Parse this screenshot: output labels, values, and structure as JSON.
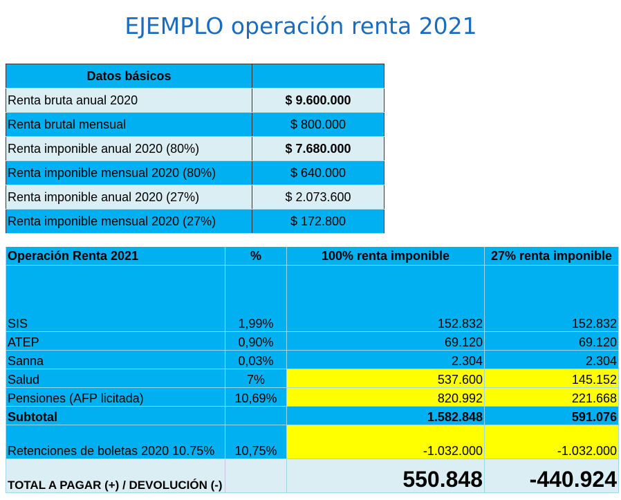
{
  "title": "EJEMPLO operación renta 2021",
  "basic": {
    "header": "Datos básicos",
    "rows": [
      {
        "label": "Renta bruta anual 2020",
        "value": "$ 9.600.000"
      },
      {
        "label": "Renta brutal mensual",
        "value": "$ 800.000"
      },
      {
        "label": "Renta imponible anual 2020 (80%)",
        "value": "$ 7.680.000"
      },
      {
        "label": "Renta imponible mensual 2020 (80%)",
        "value": "$ 640.000"
      },
      {
        "label": "Renta imponible anual  2020 (27%)",
        "value": "$ 2.073.600"
      },
      {
        "label": "Renta imponible mensual 2020 (27%)",
        "value": "$ 172.800"
      }
    ]
  },
  "op": {
    "headers": [
      "Operación Renta 2021",
      "%",
      "100% renta imponible",
      "27% renta imponible"
    ],
    "rows": [
      {
        "label": "SIS",
        "pct": "1,99%",
        "full": "152.832",
        "p27": "152.832"
      },
      {
        "label": "ATEP",
        "pct": "0,90%",
        "full": "69.120",
        "p27": "69.120"
      },
      {
        "label": "Sanna",
        "pct": "0,03%",
        "full": "2.304",
        "p27": "2.304"
      },
      {
        "label": "Salud",
        "pct": "7%",
        "full": "537.600",
        "p27": "145.152"
      },
      {
        "label": "Pensiones (AFP licitada)",
        "pct": "10,69%",
        "full": "820.992",
        "p27": "221.668"
      },
      {
        "label": "Subtotal",
        "pct": "",
        "full": "1.582.848",
        "p27": "591.076"
      },
      {
        "label": "Retenciones de boletas 2020 10.75%",
        "pct": "10,75%",
        "full": "-1.032.000",
        "p27": "-1.032.000"
      }
    ],
    "total": {
      "label": "TOTAL A PAGAR (+) / DEVOLUCIÓN (-)",
      "full": "550.848",
      "p27": "-440.924"
    }
  },
  "colors": {
    "blue": "#00b0f0",
    "light": "#daeef3",
    "highlight": "#ffff00",
    "title": "#1a6cc0"
  }
}
